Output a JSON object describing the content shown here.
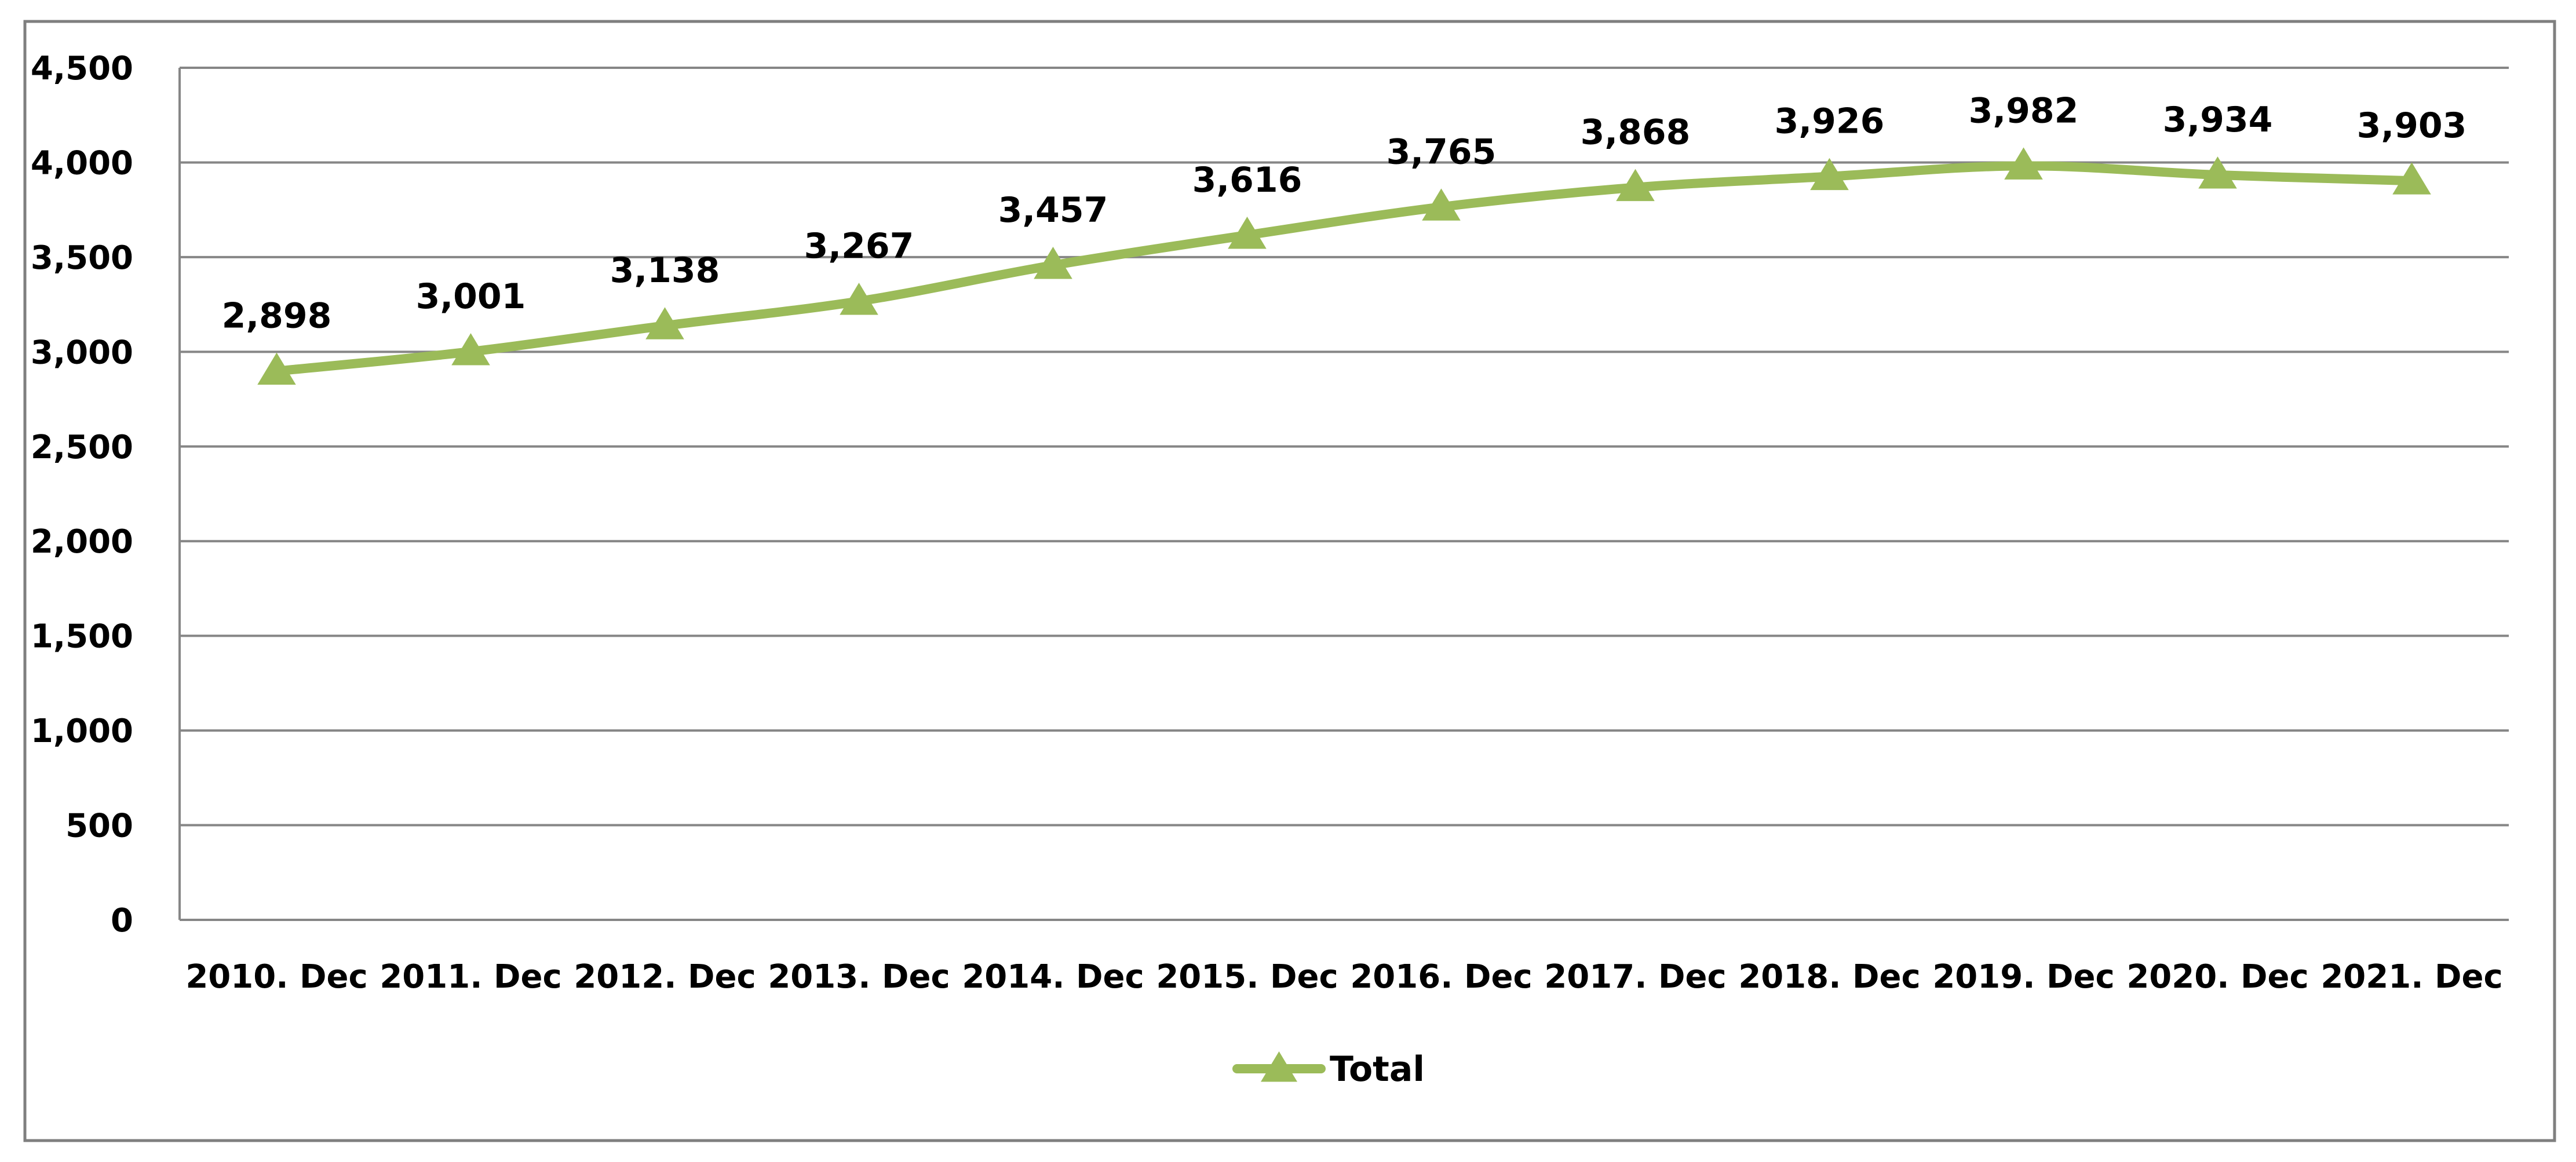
{
  "chart_data": {
    "type": "line",
    "title": "",
    "xlabel": "",
    "ylabel": "",
    "categories": [
      "2010. Dec",
      "2011. Dec",
      "2012. Dec",
      "2013. Dec",
      "2014. Dec",
      "2015. Dec",
      "2016. Dec",
      "2017. Dec",
      "2018. Dec",
      "2019. Dec",
      "2020. Dec",
      "2021. Dec"
    ],
    "series": [
      {
        "name": "Total",
        "values": [
          2898,
          3001,
          3138,
          3267,
          3457,
          3616,
          3765,
          3868,
          3926,
          3982,
          3934,
          3903
        ],
        "value_labels": [
          "2,898",
          "3,001",
          "3,138",
          "3,267",
          "3,457",
          "3,616",
          "3,765",
          "3,868",
          "3,926",
          "3,982",
          "3,934",
          "3,903"
        ],
        "color": "#9bbb59",
        "marker": "triangle"
      }
    ],
    "ylim": [
      0,
      4500
    ],
    "y_ticks": [
      0,
      500,
      1000,
      1500,
      2000,
      2500,
      3000,
      3500,
      4000,
      4500
    ],
    "y_tick_labels": [
      "0",
      "500",
      "1,000",
      "1,500",
      "2,000",
      "2,500",
      "3,000",
      "3,500",
      "4,000",
      "4,500"
    ],
    "grid": true,
    "legend_position": "bottom",
    "colors": {
      "gridline": "#868686",
      "frame": "#7f7f7f"
    }
  }
}
